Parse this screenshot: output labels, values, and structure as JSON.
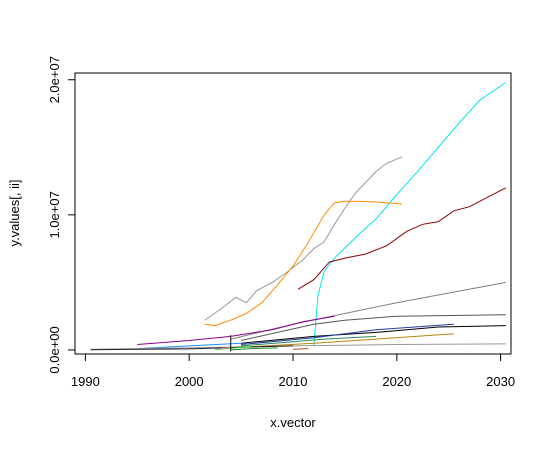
{
  "chart_data": {
    "type": "line",
    "title": "",
    "xlabel": "x.vector",
    "ylabel": "y.values[, ii]",
    "xlim": [
      1989,
      2031
    ],
    "ylim": [
      -300000,
      20500000
    ],
    "x_ticks": [
      1990,
      2000,
      2010,
      2020,
      2030
    ],
    "x_tick_labels": [
      "1990",
      "2000",
      "2010",
      "2020",
      "2030"
    ],
    "y_ticks": [
      0,
      10000000,
      20000000
    ],
    "y_tick_labels": [
      "0.0e+00",
      "1.0e+07",
      "2.0e+07"
    ],
    "grid": false,
    "legend": "none",
    "series": [
      {
        "color": "#00e5ee",
        "x": [
          2012,
          2012.4,
          2013,
          2014,
          2016,
          2018,
          2020,
          2022,
          2024,
          2026,
          2028,
          2030.5
        ],
        "y": [
          300000,
          4000000,
          5800000,
          6800000,
          8300000,
          9700000,
          11500000,
          13200000,
          15000000,
          16800000,
          18500000,
          19800000
        ]
      },
      {
        "color": "#999999",
        "x": [
          2001.5,
          2003,
          2004.5,
          2005.5,
          2006.5,
          2008,
          2009.5,
          2011,
          2012,
          2013,
          2014,
          2015,
          2016,
          2017,
          2018,
          2019,
          2020.5
        ],
        "y": [
          2200000,
          3000000,
          3900000,
          3500000,
          4400000,
          5000000,
          5800000,
          6700000,
          7500000,
          8000000,
          9300000,
          10500000,
          11600000,
          12400000,
          13200000,
          13800000,
          14300000
        ]
      },
      {
        "color": "#ff8c00",
        "x": [
          2001.5,
          2002.5,
          2004,
          2005.5,
          2007,
          2008.5,
          2010,
          2011.5,
          2013,
          2014,
          2015,
          2016,
          2018,
          2020.5
        ],
        "y": [
          1900000,
          1800000,
          2200000,
          2700000,
          3500000,
          4800000,
          6200000,
          8000000,
          10000000,
          10900000,
          11000000,
          11000000,
          10950000,
          10800000
        ]
      },
      {
        "color": "#8b0000",
        "x": [
          2010.5,
          2012,
          2013.5,
          2015,
          2017,
          2019,
          2021,
          2022.5,
          2024,
          2025.5,
          2027,
          2028.5,
          2030.5
        ],
        "y": [
          4500000,
          5200000,
          6500000,
          6800000,
          7100000,
          7700000,
          8800000,
          9300000,
          9500000,
          10300000,
          10600000,
          11200000,
          12000000
        ]
      },
      {
        "color": "#808080",
        "x": [
          2004,
          2010,
          2020,
          2030.5
        ],
        "y": [
          800000,
          1900000,
          3500000,
          5000000
        ]
      },
      {
        "color": "#555555",
        "x": [
          2005,
          2012,
          2015,
          2020,
          2030.5
        ],
        "y": [
          700000,
          1900000,
          2200000,
          2500000,
          2600000
        ]
      },
      {
        "color": "#000000",
        "x": [
          2005,
          2012,
          2018,
          2024,
          2030.5
        ],
        "y": [
          500000,
          1000000,
          1300000,
          1700000,
          1800000
        ]
      },
      {
        "color": "#1f3f9f",
        "x": [
          2005,
          2012,
          2018,
          2025.5
        ],
        "y": [
          400000,
          900000,
          1500000,
          1900000
        ]
      },
      {
        "color": "#8b008b",
        "x": [
          1995,
          2000,
          2004,
          2008,
          2011,
          2014
        ],
        "y": [
          400000,
          700000,
          1000000,
          1500000,
          2100000,
          2500000
        ]
      },
      {
        "color": "#b8860b",
        "x": [
          2005,
          2012,
          2018,
          2025.5
        ],
        "y": [
          200000,
          500000,
          800000,
          1200000
        ]
      },
      {
        "color": "#2e8b57",
        "x": [
          2005,
          2010,
          2013,
          2018
        ],
        "y": [
          300000,
          600000,
          800000,
          1000000
        ]
      },
      {
        "color": "#1e90ff",
        "x": [
          1995,
          2000,
          2005
        ],
        "y": [
          100000,
          300000,
          500000
        ]
      },
      {
        "color": "#999999",
        "x": [
          1990.5,
          2000,
          2010,
          2020,
          2030.5
        ],
        "y": [
          50000,
          150000,
          300000,
          400000,
          450000
        ]
      },
      {
        "color": "#222222",
        "x": [
          1990.5,
          2000,
          2005,
          2010
        ],
        "y": [
          20000,
          80000,
          200000,
          300000
        ]
      },
      {
        "color": "#32cd32",
        "x": [
          2002.5,
          2004,
          2006
        ],
        "y": [
          30000,
          120000,
          250000
        ]
      },
      {
        "color": "#228b22",
        "x": [
          2004,
          2006,
          2008.5
        ],
        "y": [
          0,
          100000,
          150000
        ]
      },
      {
        "color": "#a0522d",
        "x": [
          2010,
          2011.5
        ],
        "y": [
          50000,
          100000
        ]
      },
      {
        "color": "#ff69b4",
        "x": [
          2003,
          2004
        ],
        "y": [
          100000,
          200000
        ]
      },
      {
        "color": "#000000",
        "x": [
          2004,
          2004
        ],
        "y": [
          -100000,
          1100000
        ]
      }
    ]
  }
}
